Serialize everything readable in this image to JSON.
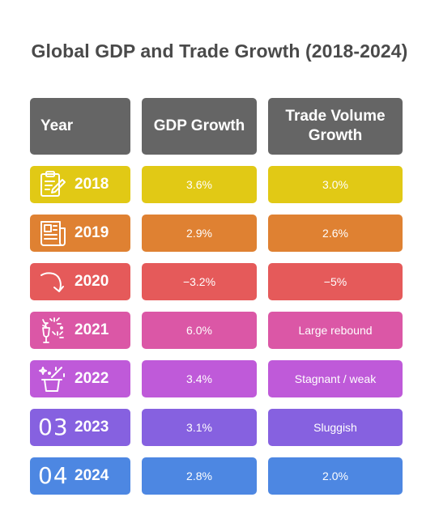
{
  "title": "Global GDP and Trade Growth (2018-2024)",
  "headers": {
    "year": "Year",
    "gdp": "GDP Growth",
    "trade": "Trade Volume Growth"
  },
  "rows": [
    {
      "year": "2018",
      "icon": "clipboard-pencil-icon",
      "gdp": "3.6%",
      "trade": "3.0%",
      "color": "#e1c915"
    },
    {
      "year": "2019",
      "icon": "newspaper-icon",
      "gdp": "2.9%",
      "trade": "2.6%",
      "color": "#df8132"
    },
    {
      "year": "2020",
      "icon": "downward-curve-arrow-icon",
      "gdp": "−3.2%",
      "trade": "−5%",
      "color": "#e55a5a"
    },
    {
      "year": "2021",
      "icon": "champagne-fireworks-icon",
      "gdp": "6.0%",
      "trade": "Large rebound",
      "color": "#db57a6"
    },
    {
      "year": "2022",
      "icon": "magic-hat-icon",
      "gdp": "3.4%",
      "trade": "Stagnant / weak",
      "color": "#bf5ad9"
    },
    {
      "year": "2023",
      "icon": "number-03-icon",
      "icon_text": "03",
      "gdp": "3.1%",
      "trade": "Sluggish",
      "color": "#8661e0"
    },
    {
      "year": "2024",
      "icon": "number-04-icon",
      "icon_text": "04",
      "gdp": "2.8%",
      "trade": "2.0%",
      "color": "#4d87e2"
    }
  ]
}
